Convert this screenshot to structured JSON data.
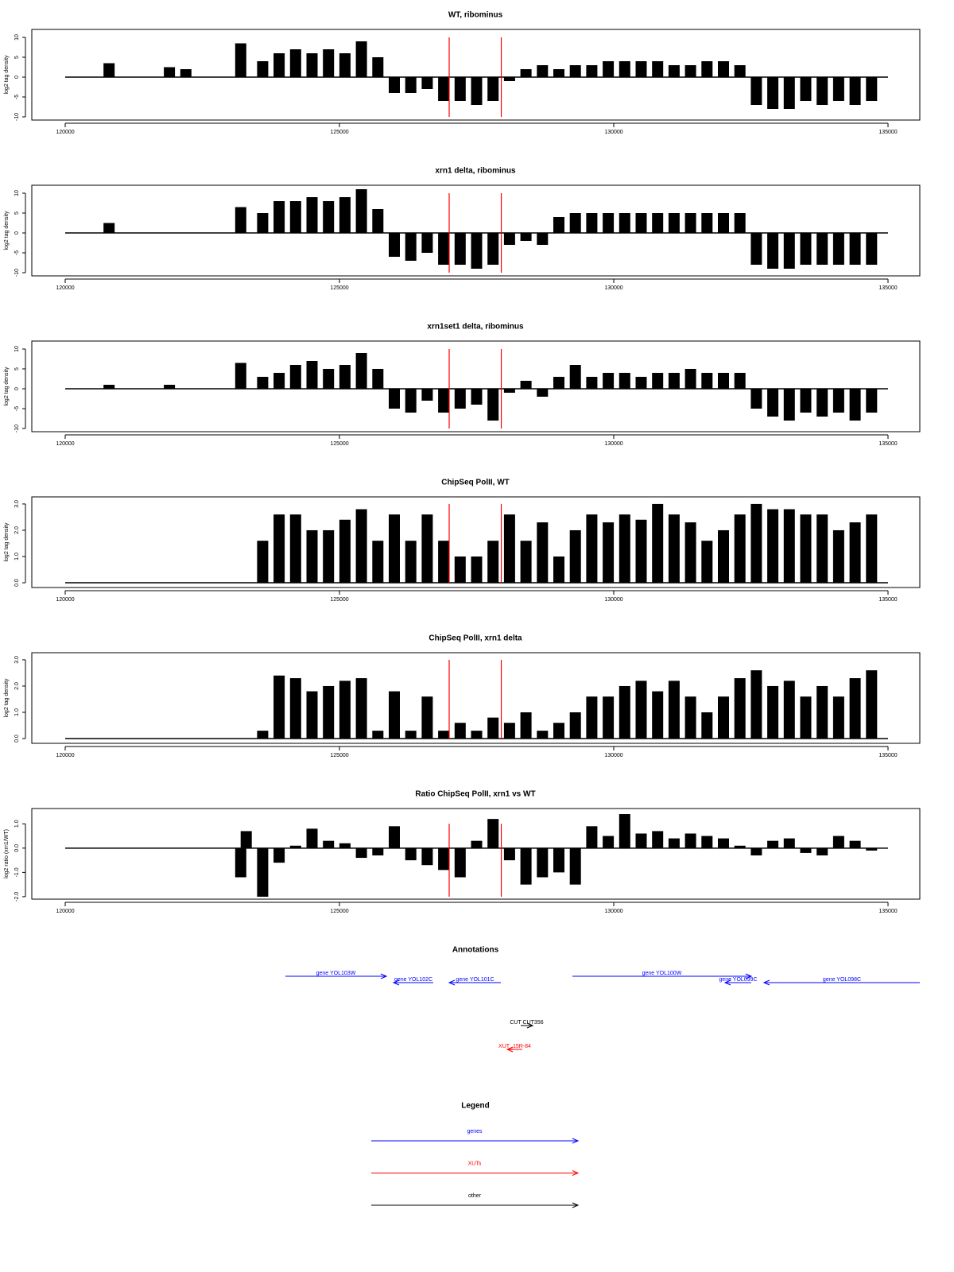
{
  "chart_data": [
    {
      "type": "bar",
      "title": "WT, ribominus",
      "ylabel": "log2 tag density",
      "x": [
        120800,
        121900,
        122200,
        123200,
        123600,
        123900,
        124200,
        124500,
        124800,
        125100,
        125400,
        125700,
        126000,
        126300,
        126600,
        126900,
        127200,
        127500,
        127800,
        128100,
        128400,
        128700,
        129000,
        129300,
        129600,
        129900,
        130200,
        130500,
        130800,
        131100,
        131400,
        131700,
        132000,
        132300,
        132600,
        132900,
        133200,
        133500,
        133800,
        134100,
        134400,
        134700
      ],
      "values": [
        3.5,
        2.5,
        2,
        8.5,
        4,
        6,
        7,
        6,
        7,
        6,
        9,
        5,
        -4,
        -4,
        -3,
        -6,
        -6,
        -7,
        -6,
        -1,
        2,
        3,
        2,
        3,
        3,
        4,
        4,
        4,
        4,
        3,
        3,
        4,
        4,
        3,
        -7,
        -8,
        -8,
        -6,
        -7,
        -6,
        -7,
        -6
      ],
      "color": "#000000",
      "vlines": [
        127000,
        127950
      ],
      "vline_color": "#ff0000",
      "xlim": [
        120000,
        135000
      ],
      "xticks": [
        120000,
        125000,
        130000,
        135000
      ],
      "ylim": [
        -10.8,
        12
      ],
      "yticks": [
        -10,
        -5,
        0,
        5,
        10
      ]
    },
    {
      "type": "bar",
      "title": "xrn1 delta, ribominus",
      "ylabel": "log2 tag density",
      "x": [
        120800,
        123200,
        123600,
        123900,
        124200,
        124500,
        124800,
        125100,
        125400,
        125700,
        126000,
        126300,
        126600,
        126900,
        127200,
        127500,
        127800,
        128100,
        128400,
        128700,
        129000,
        129300,
        129600,
        129900,
        130200,
        130500,
        130800,
        131100,
        131400,
        131700,
        132000,
        132300,
        132600,
        132900,
        133200,
        133500,
        133800,
        134100,
        134400,
        134700
      ],
      "values": [
        2.5,
        6.5,
        5,
        8,
        8,
        9,
        8,
        9,
        11,
        6,
        -6,
        -7,
        -5,
        -8,
        -8,
        -9,
        -8,
        -3,
        -2,
        -3,
        4,
        5,
        5,
        5,
        5,
        5,
        5,
        5,
        5,
        5,
        5,
        5,
        -8,
        -9,
        -9,
        -8,
        -8,
        -8,
        -8,
        -8
      ],
      "color": "#000000",
      "vlines": [
        127000,
        127950
      ],
      "vline_color": "#ff0000",
      "xlim": [
        120000,
        135000
      ],
      "xticks": [
        120000,
        125000,
        130000,
        135000
      ],
      "ylim": [
        -10.8,
        12
      ],
      "yticks": [
        -10,
        -5,
        0,
        5,
        10
      ]
    },
    {
      "type": "bar",
      "title": "xrn1set1 delta, ribominus",
      "ylabel": "log2 tag density",
      "x": [
        120800,
        121900,
        123200,
        123600,
        123900,
        124200,
        124500,
        124800,
        125100,
        125400,
        125700,
        126000,
        126300,
        126600,
        126900,
        127200,
        127500,
        127800,
        128100,
        128400,
        128700,
        129000,
        129300,
        129600,
        129900,
        130200,
        130500,
        130800,
        131100,
        131400,
        131700,
        132000,
        132300,
        132600,
        132900,
        133200,
        133500,
        133800,
        134100,
        134400,
        134700
      ],
      "values": [
        1,
        1,
        6.5,
        3,
        4,
        6,
        7,
        5,
        6,
        9,
        5,
        -5,
        -6,
        -3,
        -6,
        -5,
        -4,
        -8,
        -1,
        2,
        -2,
        3,
        6,
        3,
        4,
        4,
        3,
        4,
        4,
        5,
        4,
        4,
        4,
        -5,
        -7,
        -8,
        -6,
        -7,
        -6,
        -8,
        -6
      ],
      "color": "#000000",
      "vlines": [
        127000,
        127950
      ],
      "vline_color": "#ff0000",
      "xlim": [
        120000,
        135000
      ],
      "xticks": [
        120000,
        125000,
        130000,
        135000
      ],
      "ylim": [
        -10.8,
        12
      ],
      "yticks": [
        -10,
        -5,
        0,
        5,
        10
      ]
    },
    {
      "type": "bar",
      "title": "ChipSeq PolII, WT",
      "ylabel": "log2 tag density",
      "x": [
        123600,
        123900,
        124200,
        124500,
        124800,
        125100,
        125400,
        125700,
        126000,
        126300,
        126600,
        126900,
        127200,
        127500,
        127800,
        128100,
        128400,
        128700,
        129000,
        129300,
        129600,
        129900,
        130200,
        130500,
        130800,
        131100,
        131400,
        131700,
        132000,
        132300,
        132600,
        132900,
        133200,
        133500,
        133800,
        134100,
        134400,
        134700
      ],
      "values": [
        1.6,
        2.6,
        2.6,
        2.0,
        2.0,
        2.4,
        2.8,
        1.6,
        2.6,
        1.6,
        2.6,
        1.6,
        1.0,
        1.0,
        1.6,
        2.6,
        1.6,
        2.3,
        1.0,
        2.0,
        2.6,
        2.3,
        2.6,
        2.4,
        3.0,
        2.6,
        2.3,
        1.6,
        2.0,
        2.6,
        3.0,
        2.8,
        2.8,
        2.6,
        2.6,
        2.0,
        2.3,
        2.6
      ],
      "color": "#000000",
      "vlines": [
        127000,
        127950
      ],
      "vline_color": "#ff0000",
      "xlim": [
        120000,
        135000
      ],
      "xticks": [
        120000,
        125000,
        130000,
        135000
      ],
      "ylim": [
        -0.18,
        3.27
      ],
      "yticks": [
        {
          "value": 0,
          "label": "0.0"
        },
        {
          "value": 1,
          "label": "1.0"
        },
        {
          "value": 2,
          "label": "2.0"
        },
        {
          "value": 3,
          "label": "3.0"
        }
      ]
    },
    {
      "type": "bar",
      "title": "ChipSeq PolII, xrn1 delta",
      "ylabel": "log2 tag density",
      "x": [
        123600,
        123900,
        124200,
        124500,
        124800,
        125100,
        125400,
        125700,
        126000,
        126300,
        126600,
        126900,
        127200,
        127500,
        127800,
        128100,
        128400,
        128700,
        129000,
        129300,
        129600,
        129900,
        130200,
        130500,
        130800,
        131100,
        131400,
        131700,
        132000,
        132300,
        132600,
        132900,
        133200,
        133500,
        133800,
        134100,
        134400,
        134700
      ],
      "values": [
        0.3,
        2.4,
        2.3,
        1.8,
        2.0,
        2.2,
        2.3,
        0.3,
        1.8,
        0.3,
        1.6,
        0.3,
        0.6,
        0.3,
        0.8,
        0.6,
        1.0,
        0.3,
        0.6,
        1.0,
        1.6,
        1.6,
        2.0,
        2.2,
        1.8,
        2.2,
        1.6,
        1.0,
        1.6,
        2.3,
        2.6,
        2.0,
        2.2,
        1.6,
        2.0,
        1.6,
        2.3,
        2.6
      ],
      "color": "#000000",
      "vlines": [
        127000,
        127950
      ],
      "vline_color": "#ff0000",
      "xlim": [
        120000,
        135000
      ],
      "xticks": [
        120000,
        125000,
        130000,
        135000
      ],
      "ylim": [
        -0.18,
        3.27
      ],
      "yticks": [
        {
          "value": 0,
          "label": "0.0"
        },
        {
          "value": 1,
          "label": "1.0"
        },
        {
          "value": 2,
          "label": "2.0"
        },
        {
          "value": 3,
          "label": "3.0"
        }
      ]
    },
    {
      "type": "bar",
      "title": "Ratio ChipSeq PolII, xrn1 vs WT",
      "ylabel": "log2 ratio (xrn1/WT)",
      "x": [
        123200,
        123300,
        123600,
        123900,
        124200,
        124500,
        124800,
        125100,
        125400,
        125700,
        126000,
        126300,
        126600,
        126900,
        127200,
        127500,
        127800,
        128100,
        128400,
        128700,
        129000,
        129300,
        129600,
        129900,
        130200,
        130500,
        130800,
        131100,
        131400,
        131700,
        132000,
        132300,
        132600,
        132900,
        133200,
        133500,
        133800,
        134100,
        134400,
        134700
      ],
      "values": [
        -1.2,
        0.7,
        -2.0,
        -0.6,
        0.1,
        0.8,
        0.3,
        0.2,
        -0.4,
        -0.3,
        0.9,
        -0.5,
        -0.7,
        -0.9,
        -1.2,
        0.3,
        1.2,
        -0.5,
        -1.5,
        -1.2,
        -1.0,
        -1.5,
        0.9,
        0.5,
        1.4,
        0.6,
        0.7,
        0.4,
        0.6,
        0.5,
        0.4,
        0.1,
        -0.3,
        0.3,
        0.4,
        -0.2,
        -0.3,
        0.5,
        0.3,
        -0.1
      ],
      "color": "#000000",
      "vlines": [
        127000,
        127950
      ],
      "vline_color": "#ff0000",
      "xlim": [
        120000,
        135000
      ],
      "xticks": [
        120000,
        125000,
        130000,
        135000
      ],
      "ylim": [
        -2.1,
        1.63
      ],
      "yticks": [
        {
          "value": -2,
          "label": "-2.0"
        },
        {
          "value": -1,
          "label": "-1.0"
        },
        {
          "value": 0,
          "label": "0.0"
        },
        {
          "value": 1,
          "label": "1.0"
        }
      ]
    },
    {
      "type": "annotation",
      "title": "Annotations",
      "xlim": [
        120000,
        135000
      ],
      "features": [
        {
          "label": "gene YOL103W",
          "start": 124014,
          "end": 125855,
          "direction": "right",
          "kind": "gene",
          "color": "#0000ff"
        },
        {
          "label": "gene YOL102C",
          "start": 125986,
          "end": 126710,
          "direction": "left",
          "kind": "gene",
          "color": "#0000ff"
        },
        {
          "label": "gene YOL101C",
          "start": 127000,
          "end": 127942,
          "direction": "left",
          "kind": "gene",
          "color": "#0000ff"
        },
        {
          "label": "gene YOL100W",
          "start": 129246,
          "end": 132507,
          "direction": "right",
          "kind": "gene",
          "color": "#0000ff"
        },
        {
          "label": "gene YOL099C",
          "start": 132029,
          "end": 132507,
          "direction": "left",
          "kind": "gene",
          "color": "#0000ff"
        },
        {
          "label": "gene YOL098C",
          "start": 132739,
          "end": 135580,
          "direction": "left",
          "kind": "gene",
          "color": "#0000ff"
        },
        {
          "label": "CUT CUT356",
          "start": 128304,
          "end": 128522,
          "direction": "right",
          "kind": "CUT",
          "color": "#000000"
        },
        {
          "label": "XUT_15R-84",
          "start": 128058,
          "end": 128333,
          "direction": "left",
          "kind": "XUT",
          "color": "#ff0000"
        }
      ]
    }
  ],
  "legend": {
    "title": "Legend",
    "items": [
      {
        "name": "genes",
        "color": "#0000ff"
      },
      {
        "name": "XUTs",
        "color": "#ff0000"
      },
      {
        "name": "other",
        "color": "#000000"
      }
    ]
  }
}
